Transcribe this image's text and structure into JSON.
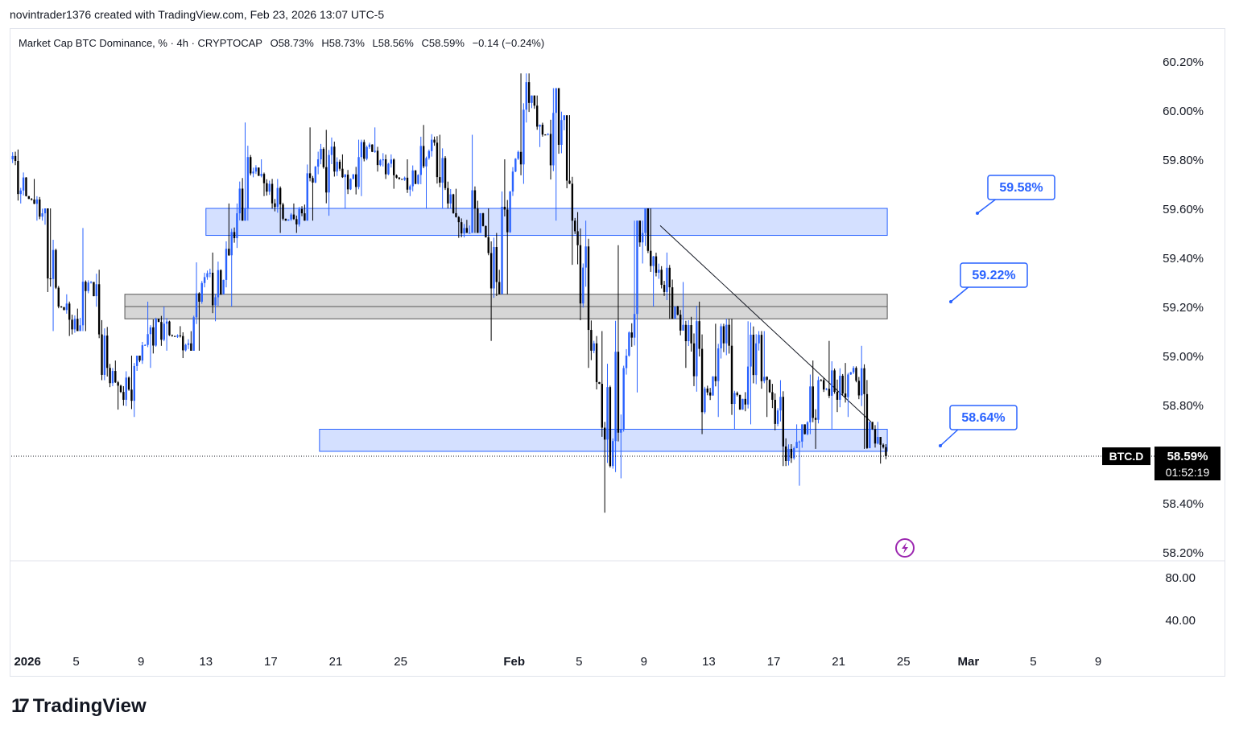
{
  "header": {
    "attribution": "novintrader1376 created with TradingView.com, Feb 23, 2026 13:07 UTC-5"
  },
  "legend": {
    "symbol": "Market Cap BTC Dominance, % · 4h · CRYPTOCAP",
    "open": "O58.73%",
    "high": "H58.73%",
    "low": "L58.56%",
    "close": "C58.59%",
    "change": "−0.14 (−0.24%)"
  },
  "price_axis": {
    "ticks": [
      "60.20%",
      "60.00%",
      "59.80%",
      "59.60%",
      "59.40%",
      "59.20%",
      "59.00%",
      "58.80%",
      "58.40%",
      "58.20%"
    ]
  },
  "indicator_axis": {
    "ticks": [
      "80.00",
      "40.00"
    ]
  },
  "time_axis": {
    "ticks": [
      "2026",
      "5",
      "9",
      "13",
      "17",
      "21",
      "25",
      "Feb",
      "5",
      "9",
      "13",
      "17",
      "21",
      "25",
      "Mar",
      "5",
      "9"
    ]
  },
  "current": {
    "ticker": "BTC.D",
    "price": "58.59%",
    "countdown": "01:52:19"
  },
  "callouts": [
    {
      "label": "59.58%"
    },
    {
      "label": "59.22%"
    },
    {
      "label": "58.64%"
    }
  ],
  "brand": {
    "mark": "17",
    "name": "TradingView"
  },
  "colors": {
    "up": "#2962ff",
    "down": "#000000",
    "zone_blue": "#2962ff",
    "zone_gray": "#9e9e9e",
    "callout_text": "#2962ff",
    "last_price_bg": "#000000",
    "lightning": "#9c27b0"
  },
  "chart_data": {
    "type": "candlestick",
    "timeframe": "4h",
    "y_unit": "%",
    "ylim": [
      58.2,
      60.25
    ],
    "x_range": [
      "2026-01-01",
      "2026-03-10"
    ],
    "current_price": 58.59,
    "zones": [
      {
        "from": "2026-01-13",
        "to": "2026-02-24",
        "top": 59.6,
        "bottom": 59.49,
        "color": "blue"
      },
      {
        "from": "2026-01-08",
        "to": "2026-02-24",
        "top": 59.25,
        "bottom": 59.15,
        "color": "gray"
      },
      {
        "from": "2026-01-20",
        "to": "2026-02-24",
        "top": 58.7,
        "bottom": 58.61,
        "color": "blue"
      }
    ],
    "trendline": {
      "start": {
        "date": "2026-02-10",
        "value": 59.53
      },
      "end": {
        "date": "2026-02-23",
        "value": 58.73
      }
    },
    "candles_daily_summary": [
      {
        "date": "2026-01-01",
        "o": 59.8,
        "h": 59.84,
        "l": 59.62,
        "c": 59.65
      },
      {
        "date": "2026-01-02",
        "o": 59.65,
        "h": 59.72,
        "l": 59.55,
        "c": 59.58
      },
      {
        "date": "2026-01-03",
        "o": 59.58,
        "h": 59.6,
        "l": 59.1,
        "c": 59.2
      },
      {
        "date": "2026-01-04",
        "o": 59.2,
        "h": 59.25,
        "l": 59.08,
        "c": 59.15
      },
      {
        "date": "2026-01-05",
        "o": 59.15,
        "h": 59.52,
        "l": 59.1,
        "c": 59.3
      },
      {
        "date": "2026-01-06",
        "o": 59.3,
        "h": 59.35,
        "l": 58.9,
        "c": 58.95
      },
      {
        "date": "2026-01-07",
        "o": 58.95,
        "h": 58.98,
        "l": 58.78,
        "c": 58.82
      },
      {
        "date": "2026-01-08",
        "o": 58.82,
        "h": 59.0,
        "l": 58.75,
        "c": 58.98
      },
      {
        "date": "2026-01-09",
        "o": 58.98,
        "h": 59.22,
        "l": 58.95,
        "c": 59.15
      },
      {
        "date": "2026-01-10",
        "o": 59.15,
        "h": 59.2,
        "l": 59.02,
        "c": 59.08
      },
      {
        "date": "2026-01-11",
        "o": 59.08,
        "h": 59.12,
        "l": 58.99,
        "c": 59.05
      },
      {
        "date": "2026-01-12",
        "o": 59.05,
        "h": 59.38,
        "l": 59.02,
        "c": 59.32
      },
      {
        "date": "2026-01-13",
        "o": 59.32,
        "h": 59.42,
        "l": 59.14,
        "c": 59.25
      },
      {
        "date": "2026-01-14",
        "o": 59.25,
        "h": 59.62,
        "l": 59.2,
        "c": 59.58
      },
      {
        "date": "2026-01-15",
        "o": 59.58,
        "h": 59.95,
        "l": 59.55,
        "c": 59.75
      },
      {
        "date": "2026-01-16",
        "o": 59.75,
        "h": 59.8,
        "l": 59.65,
        "c": 59.7
      },
      {
        "date": "2026-01-17",
        "o": 59.7,
        "h": 59.72,
        "l": 59.5,
        "c": 59.55
      },
      {
        "date": "2026-01-18",
        "o": 59.55,
        "h": 59.62,
        "l": 59.5,
        "c": 59.58
      },
      {
        "date": "2026-01-19",
        "o": 59.58,
        "h": 59.93,
        "l": 59.55,
        "c": 59.8
      },
      {
        "date": "2026-01-20",
        "o": 59.8,
        "h": 59.92,
        "l": 59.57,
        "c": 59.75
      },
      {
        "date": "2026-01-21",
        "o": 59.75,
        "h": 59.82,
        "l": 59.6,
        "c": 59.72
      },
      {
        "date": "2026-01-22",
        "o": 59.72,
        "h": 59.88,
        "l": 59.65,
        "c": 59.85
      },
      {
        "date": "2026-01-23",
        "o": 59.85,
        "h": 59.93,
        "l": 59.75,
        "c": 59.8
      },
      {
        "date": "2026-01-24",
        "o": 59.8,
        "h": 59.82,
        "l": 59.68,
        "c": 59.72
      },
      {
        "date": "2026-01-25",
        "o": 59.72,
        "h": 59.8,
        "l": 59.65,
        "c": 59.7
      },
      {
        "date": "2026-01-26",
        "o": 59.7,
        "h": 59.94,
        "l": 59.6,
        "c": 59.88
      },
      {
        "date": "2026-01-27",
        "o": 59.88,
        "h": 59.9,
        "l": 59.6,
        "c": 59.62
      },
      {
        "date": "2026-01-28",
        "o": 59.62,
        "h": 59.68,
        "l": 59.48,
        "c": 59.52
      },
      {
        "date": "2026-01-29",
        "o": 59.52,
        "h": 59.9,
        "l": 59.5,
        "c": 59.58
      },
      {
        "date": "2026-01-30",
        "o": 59.58,
        "h": 59.6,
        "l": 59.06,
        "c": 59.3
      },
      {
        "date": "2026-01-31",
        "o": 59.3,
        "h": 59.8,
        "l": 59.25,
        "c": 59.75
      },
      {
        "date": "2026-02-01",
        "o": 59.75,
        "h": 60.15,
        "l": 59.7,
        "c": 60.03
      },
      {
        "date": "2026-02-02",
        "o": 60.03,
        "h": 60.06,
        "l": 59.85,
        "c": 59.9
      },
      {
        "date": "2026-02-03",
        "o": 59.9,
        "h": 60.09,
        "l": 59.55,
        "c": 59.96
      },
      {
        "date": "2026-02-04",
        "o": 59.96,
        "h": 59.98,
        "l": 59.37,
        "c": 59.45
      },
      {
        "date": "2026-02-05",
        "o": 59.45,
        "h": 59.55,
        "l": 58.95,
        "c": 59.05
      },
      {
        "date": "2026-02-06",
        "o": 59.05,
        "h": 59.1,
        "l": 58.36,
        "c": 58.55
      },
      {
        "date": "2026-02-07",
        "o": 58.55,
        "h": 59.45,
        "l": 58.5,
        "c": 59.0
      },
      {
        "date": "2026-02-08",
        "o": 59.0,
        "h": 59.55,
        "l": 58.85,
        "c": 59.5
      },
      {
        "date": "2026-02-09",
        "o": 59.5,
        "h": 59.6,
        "l": 59.2,
        "c": 59.35
      },
      {
        "date": "2026-02-10",
        "o": 59.35,
        "h": 59.42,
        "l": 59.15,
        "c": 59.2
      },
      {
        "date": "2026-02-11",
        "o": 59.2,
        "h": 59.3,
        "l": 58.95,
        "c": 59.05
      },
      {
        "date": "2026-02-12",
        "o": 59.05,
        "h": 59.22,
        "l": 58.68,
        "c": 58.85
      },
      {
        "date": "2026-02-13",
        "o": 58.85,
        "h": 59.13,
        "l": 58.75,
        "c": 59.05
      },
      {
        "date": "2026-02-14",
        "o": 59.05,
        "h": 59.15,
        "l": 58.7,
        "c": 58.78
      },
      {
        "date": "2026-02-15",
        "o": 58.78,
        "h": 59.14,
        "l": 58.72,
        "c": 59.05
      },
      {
        "date": "2026-02-16",
        "o": 59.05,
        "h": 59.1,
        "l": 58.75,
        "c": 58.82
      },
      {
        "date": "2026-02-17",
        "o": 58.82,
        "h": 58.9,
        "l": 58.55,
        "c": 58.62
      },
      {
        "date": "2026-02-18",
        "o": 58.62,
        "h": 58.72,
        "l": 58.47,
        "c": 58.68
      },
      {
        "date": "2026-02-19",
        "o": 58.68,
        "h": 58.98,
        "l": 58.62,
        "c": 58.9
      },
      {
        "date": "2026-02-20",
        "o": 58.9,
        "h": 59.06,
        "l": 58.7,
        "c": 58.82
      },
      {
        "date": "2026-02-21",
        "o": 58.82,
        "h": 58.97,
        "l": 58.75,
        "c": 58.95
      },
      {
        "date": "2026-02-22",
        "o": 58.95,
        "h": 59.04,
        "l": 58.62,
        "c": 58.73
      },
      {
        "date": "2026-02-23",
        "o": 58.73,
        "h": 58.73,
        "l": 58.56,
        "c": 58.59
      }
    ]
  }
}
